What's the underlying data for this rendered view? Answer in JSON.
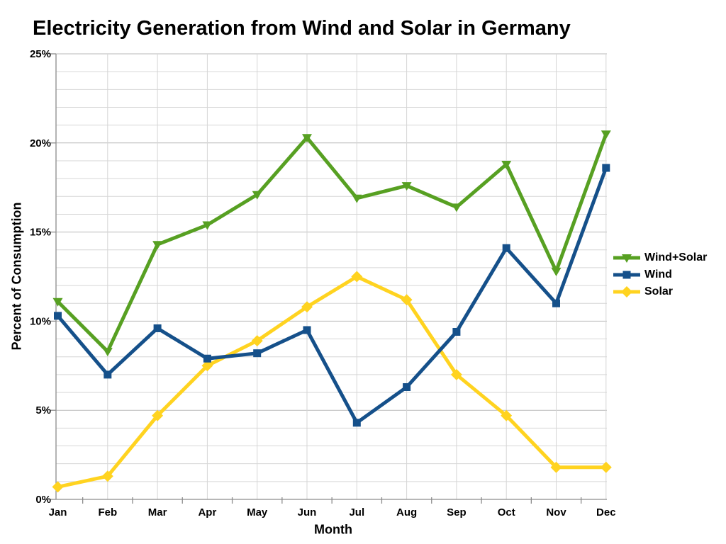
{
  "title": "Electricity Generation from Wind and Solar in Germany",
  "chart_data": {
    "type": "line",
    "title": "Electricity Generation from Wind and Solar in Germany",
    "xlabel": "Month",
    "ylabel": "Percent of Consumption",
    "ylim": [
      0,
      25
    ],
    "y_major_step": 5,
    "y_minor_step": 1,
    "y_tick_suffix": "%",
    "grid": "major-and-minor",
    "legend_position": "right",
    "categories": [
      "Jan",
      "Feb",
      "Mar",
      "Apr",
      "May",
      "Jun",
      "Jul",
      "Aug",
      "Sep",
      "Oct",
      "Nov",
      "Dec"
    ],
    "series": [
      {
        "name": "Wind+Solar",
        "color": "#57A022",
        "marker": "triangle-down",
        "values": [
          11.1,
          8.3,
          14.3,
          15.4,
          17.1,
          20.3,
          16.9,
          17.6,
          16.4,
          18.8,
          12.8,
          20.5
        ]
      },
      {
        "name": "Wind",
        "color": "#15508A",
        "marker": "square",
        "values": [
          10.3,
          7.0,
          9.6,
          7.9,
          8.2,
          9.5,
          4.3,
          6.3,
          9.4,
          14.1,
          11.0,
          18.6
        ]
      },
      {
        "name": "Solar",
        "color": "#FFD320",
        "marker": "diamond",
        "values": [
          0.7,
          1.3,
          4.7,
          7.5,
          8.9,
          10.8,
          12.5,
          11.2,
          7.0,
          4.7,
          1.8,
          1.8
        ]
      }
    ]
  }
}
